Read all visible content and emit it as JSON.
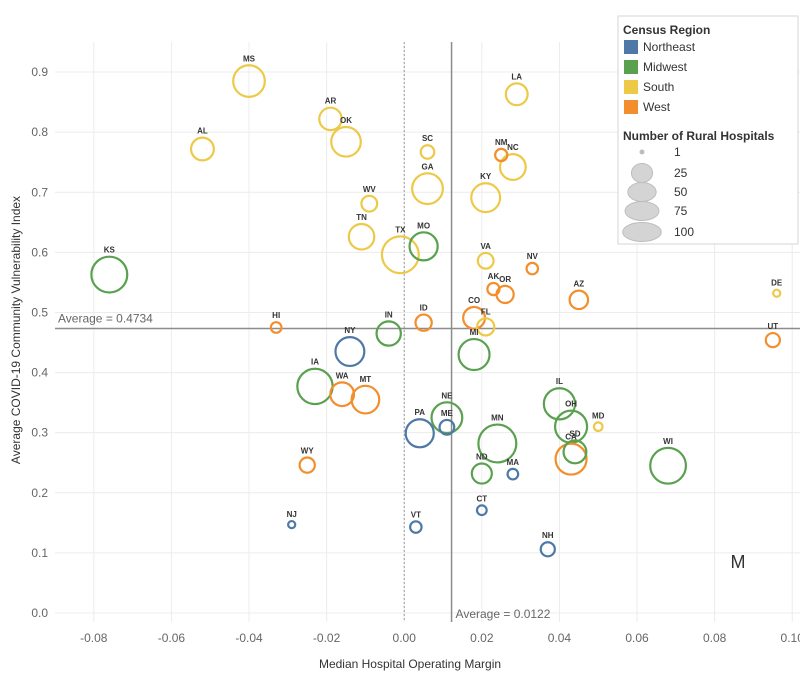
{
  "chart_data": {
    "type": "scatter",
    "xlabel": "Median Hospital Operating Margin",
    "ylabel": "Average COVID-19 Community Vulnerability Index",
    "xlim": [
      -0.09,
      0.102
    ],
    "ylim": [
      -0.015,
      0.95
    ],
    "x_ticks": [
      "-0.08",
      "-0.06",
      "-0.04",
      "-0.02",
      "0.00",
      "0.02",
      "0.04",
      "0.06",
      "0.08",
      "0.10"
    ],
    "y_ticks": [
      "0.0",
      "0.1",
      "0.2",
      "0.3",
      "0.4",
      "0.5",
      "0.6",
      "0.7",
      "0.8",
      "0.9"
    ],
    "grid": true,
    "reference_lines": {
      "y_average_label": "Average = 0.4734",
      "y_average": 0.4734,
      "x_average_label": "Average = 0.0122",
      "x_average": 0.0122,
      "x_dotted": 0.0
    },
    "corner_mark": "M",
    "legend": {
      "position": "top-right",
      "color_title": "Census Region",
      "regions": [
        {
          "name": "Northeast",
          "color": "#4e79a7"
        },
        {
          "name": "Midwest",
          "color": "#59a14f"
        },
        {
          "name": "South",
          "color": "#edc948"
        },
        {
          "name": "West",
          "color": "#f28e2b"
        }
      ],
      "size_title": "Number of Rural Hospitals",
      "sizes": [
        {
          "label": "1",
          "value": 1
        },
        {
          "label": "25",
          "value": 25
        },
        {
          "label": "50",
          "value": 50
        },
        {
          "label": "75",
          "value": 75
        },
        {
          "label": "100",
          "value": 100
        }
      ]
    },
    "points": [
      {
        "state": "MS",
        "x": -0.04,
        "y": 0.885,
        "region": "South",
        "hospitals": 64
      },
      {
        "state": "LA",
        "x": 0.029,
        "y": 0.863,
        "region": "South",
        "hospitals": 27
      },
      {
        "state": "AR",
        "x": -0.019,
        "y": 0.822,
        "region": "South",
        "hospitals": 29
      },
      {
        "state": "OK",
        "x": -0.015,
        "y": 0.784,
        "region": "South",
        "hospitals": 55
      },
      {
        "state": "AL",
        "x": -0.052,
        "y": 0.772,
        "region": "South",
        "hospitals": 30
      },
      {
        "state": "SC",
        "x": 0.006,
        "y": 0.767,
        "region": "South",
        "hospitals": 8
      },
      {
        "state": "NM",
        "x": 0.025,
        "y": 0.762,
        "region": "West",
        "hospitals": 6
      },
      {
        "state": "NC",
        "x": 0.028,
        "y": 0.742,
        "region": "South",
        "hospitals": 40
      },
      {
        "state": "GA",
        "x": 0.006,
        "y": 0.706,
        "region": "South",
        "hospitals": 60
      },
      {
        "state": "KY",
        "x": 0.021,
        "y": 0.691,
        "region": "South",
        "hospitals": 52
      },
      {
        "state": "WV",
        "x": -0.009,
        "y": 0.681,
        "region": "South",
        "hospitals": 12
      },
      {
        "state": "TN",
        "x": -0.011,
        "y": 0.626,
        "region": "South",
        "hospitals": 39
      },
      {
        "state": "MO",
        "x": 0.005,
        "y": 0.61,
        "region": "Midwest",
        "hospitals": 49
      },
      {
        "state": "TX",
        "x": -0.001,
        "y": 0.596,
        "region": "South",
        "hospitals": 90
      },
      {
        "state": "VA",
        "x": 0.021,
        "y": 0.586,
        "region": "South",
        "hospitals": 12
      },
      {
        "state": "KS",
        "x": -0.076,
        "y": 0.563,
        "region": "Midwest",
        "hospitals": 85
      },
      {
        "state": "NV",
        "x": 0.033,
        "y": 0.573,
        "region": "West",
        "hospitals": 5
      },
      {
        "state": "AK",
        "x": 0.023,
        "y": 0.539,
        "region": "West",
        "hospitals": 6
      },
      {
        "state": "OR",
        "x": 0.026,
        "y": 0.53,
        "region": "West",
        "hospitals": 15
      },
      {
        "state": "AZ",
        "x": 0.045,
        "y": 0.521,
        "region": "West",
        "hospitals": 18
      },
      {
        "state": "DE",
        "x": 0.096,
        "y": 0.532,
        "region": "South",
        "hospitals": 1
      },
      {
        "state": "CO",
        "x": 0.018,
        "y": 0.491,
        "region": "West",
        "hospitals": 27
      },
      {
        "state": "ID",
        "x": 0.005,
        "y": 0.483,
        "region": "West",
        "hospitals": 13
      },
      {
        "state": "FL",
        "x": 0.021,
        "y": 0.476,
        "region": "South",
        "hospitals": 15
      },
      {
        "state": "HI",
        "x": -0.033,
        "y": 0.475,
        "region": "West",
        "hospitals": 4
      },
      {
        "state": "IN",
        "x": -0.004,
        "y": 0.465,
        "region": "Midwest",
        "hospitals": 35
      },
      {
        "state": "UT",
        "x": 0.095,
        "y": 0.454,
        "region": "West",
        "hospitals": 9
      },
      {
        "state": "NY",
        "x": -0.014,
        "y": 0.435,
        "region": "Northeast",
        "hospitals": 52
      },
      {
        "state": "MI",
        "x": 0.018,
        "y": 0.43,
        "region": "Midwest",
        "hospitals": 61
      },
      {
        "state": "IA",
        "x": -0.023,
        "y": 0.377,
        "region": "Midwest",
        "hospitals": 82
      },
      {
        "state": "WA",
        "x": -0.016,
        "y": 0.364,
        "region": "West",
        "hospitals": 33
      },
      {
        "state": "MT",
        "x": -0.01,
        "y": 0.355,
        "region": "West",
        "hospitals": 47
      },
      {
        "state": "IL",
        "x": 0.04,
        "y": 0.348,
        "region": "Midwest",
        "hospitals": 62
      },
      {
        "state": "NE",
        "x": 0.011,
        "y": 0.325,
        "region": "Midwest",
        "hospitals": 60
      },
      {
        "state": "MD",
        "x": 0.05,
        "y": 0.31,
        "region": "South",
        "hospitals": 2
      },
      {
        "state": "OH",
        "x": 0.043,
        "y": 0.31,
        "region": "Midwest",
        "hospitals": 66
      },
      {
        "state": "ME",
        "x": 0.011,
        "y": 0.309,
        "region": "Northeast",
        "hospitals": 10
      },
      {
        "state": "PA",
        "x": 0.004,
        "y": 0.299,
        "region": "Northeast",
        "hospitals": 49
      },
      {
        "state": "MN",
        "x": 0.024,
        "y": 0.282,
        "region": "Midwest",
        "hospitals": 96
      },
      {
        "state": "SD",
        "x": 0.044,
        "y": 0.268,
        "region": "Midwest",
        "hospitals": 30
      },
      {
        "state": "CA",
        "x": 0.043,
        "y": 0.256,
        "region": "West",
        "hospitals": 61
      },
      {
        "state": "WI",
        "x": 0.068,
        "y": 0.245,
        "region": "Midwest",
        "hospitals": 84
      },
      {
        "state": "WY",
        "x": -0.025,
        "y": 0.246,
        "region": "West",
        "hospitals": 11
      },
      {
        "state": "ND",
        "x": 0.02,
        "y": 0.232,
        "region": "Midwest",
        "hospitals": 22
      },
      {
        "state": "MA",
        "x": 0.028,
        "y": 0.231,
        "region": "Northeast",
        "hospitals": 4
      },
      {
        "state": "CT",
        "x": 0.02,
        "y": 0.171,
        "region": "Northeast",
        "hospitals": 3
      },
      {
        "state": "NJ",
        "x": -0.029,
        "y": 0.147,
        "region": "Northeast",
        "hospitals": 1
      },
      {
        "state": "VT",
        "x": 0.003,
        "y": 0.143,
        "region": "Northeast",
        "hospitals": 5
      },
      {
        "state": "NH",
        "x": 0.037,
        "y": 0.106,
        "region": "Northeast",
        "hospitals": 9
      }
    ]
  }
}
